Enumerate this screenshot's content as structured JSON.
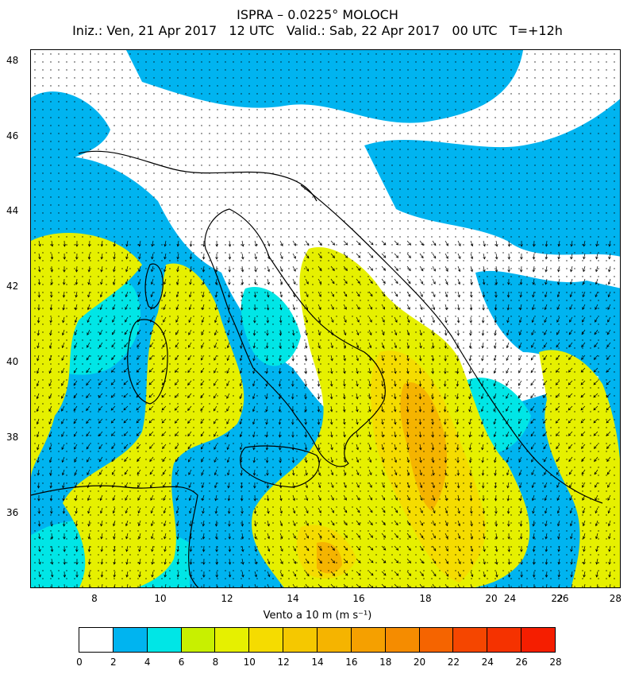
{
  "header": {
    "title": "ISPRA – 0.0225° MOLOCH",
    "subtitle": "Iniz.: Ven, 21 Apr 2017   12 UTC   Valid.: Sab, 22 Apr 2017   00 UTC   T=+12h"
  },
  "map": {
    "lat_ticks": [
      "48",
      "46",
      "44",
      "42",
      "40",
      "38",
      "36"
    ],
    "lon_ticks": [
      "8",
      "10",
      "12",
      "14",
      "16",
      "18",
      "20",
      "22",
      "24",
      "26",
      "28"
    ],
    "lat_range": [
      34.0,
      48.4
    ],
    "lon_range": [
      5.8,
      28.2
    ]
  },
  "legend": {
    "title": "Vento a 10 m (m s⁻¹)",
    "labels": [
      "0",
      "2",
      "4",
      "6",
      "8",
      "10",
      "12",
      "14",
      "16",
      "18",
      "20",
      "22",
      "24",
      "26",
      "28"
    ],
    "colors": [
      "#ffffff",
      "#00b4f0",
      "#00e6e6",
      "#c8f000",
      "#e6f000",
      "#f5dc00",
      "#f5c800",
      "#f5b400",
      "#f5a000",
      "#f58c00",
      "#f56400",
      "#f54600",
      "#f53200",
      "#f51e00"
    ]
  }
}
